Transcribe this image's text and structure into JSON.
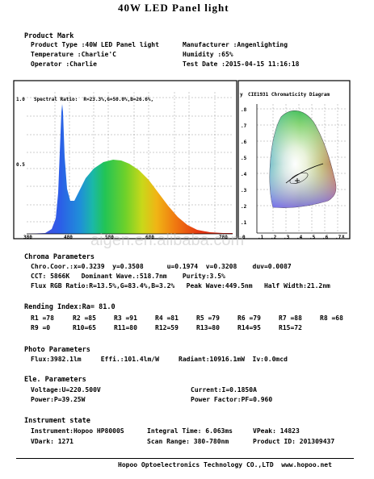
{
  "title": "40W LED Panel light",
  "product_mark": {
    "heading": "Product Mark",
    "product_type": "Product Type :40W LED Panel light",
    "manufacturer": "Manufacturer :Angenlighting",
    "temperature": "Temperature :Charlie'C",
    "humidity": "Humidity :65%",
    "operator": "Operator :Charlie",
    "test_date": "Test Date :2015-04-15 11:16:18"
  },
  "spectrum": {
    "ratio_label": "Spectral Ratio:  R=23.3%,G=50.0%,B=26.6%,",
    "y_top": "1.0",
    "y_mid": "0.5",
    "x_ticks": [
      "380",
      "480",
      "580",
      "680",
      "780"
    ]
  },
  "cie": {
    "title": "CIE1931 Chromaticity Diagram",
    "y_axis": "y",
    "x_axis": "x",
    "y_ticks": [
      ".8",
      ".7",
      ".6",
      ".5",
      ".4",
      ".3",
      ".2",
      ".1"
    ],
    "x_ticks": [
      "0",
      ".1",
      ".2",
      ".3",
      ".4",
      ".5",
      ".6",
      ".7"
    ]
  },
  "watermark": "aigen.en.alibaba.com",
  "chroma": {
    "heading": "Chroma Parameters",
    "line1": "Chro.Coor.:x=0.3239  y=0.3508      u=0.1974  v=0.3208    duv=0.0087",
    "line2": "CCT: 5866K   Dominant Wave.:518.7nm    Purity:3.5%",
    "line3": "Flux RGB Ratio:R=13.5%,G=83.4%,B=3.2%   Peak Wave:449.5nm   Half Width:21.2nm"
  },
  "rendering": {
    "heading": "Rending Index:Ra= 81.0",
    "row1": [
      "R1 =78",
      "R2 =85",
      "R3 =91",
      "R4 =81",
      "R5 =79",
      "R6 =79",
      "R7 =88",
      "R8 =68"
    ],
    "row2": [
      "R9 =0",
      "R10=65",
      "R11=80",
      "R12=59",
      "R13=80",
      "R14=95",
      "R15=72"
    ]
  },
  "photo": {
    "heading": "Photo Parameters",
    "line": "Flux:3982.1lm     Effi.:101.4lm/W     Radiant:10916.1mW  Iv:0.0mcd"
  },
  "electrical": {
    "heading": "Ele. Parameters",
    "voltage": "Voltage:U=220.500V",
    "current": "Current:I=0.1850A",
    "power": "Power:P=39.25W",
    "power_factor": "Power Factor:PF=0.960"
  },
  "instrument": {
    "heading": "Instrument state",
    "instrument": "Instrument:Hopoo HP8000S",
    "integral_time": "Integral Time: 6.063ms",
    "vpeak": "VPeak: 14823",
    "vdark": "VDark: 1271",
    "scan_range": "Scan Range: 380-780nm",
    "product_id": "Product ID: 201309437"
  },
  "footer": "Hopoo Optoelectronics Technology CO.,LTD  www.hopoo.net"
}
